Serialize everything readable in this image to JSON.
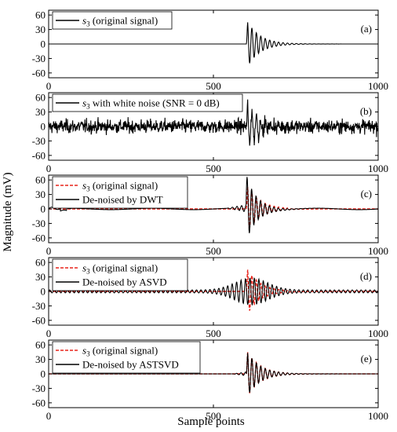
{
  "figure": {
    "ylabel": "Magnitude (mV)",
    "xlabel": "Sample points"
  },
  "colors": {
    "original": "#e8231a",
    "denoised": "#000000",
    "axes": "#000000"
  },
  "chart_data": [
    {
      "panel": "(a)",
      "type": "line",
      "xlim": [
        0,
        1000
      ],
      "ylim": [
        -70,
        70
      ],
      "yticks": [
        60,
        30,
        0,
        -30,
        -60
      ],
      "xticks": [
        0,
        500,
        1000
      ],
      "legend": [
        {
          "name_main": "s",
          "name_sub": "3",
          "name_rest": " (original signal)",
          "style": "solid",
          "color": "#000000"
        }
      ],
      "series": [
        {
          "kind": "s3",
          "description_values": {
            "onset": 600,
            "peak_amplitude": 52,
            "decay_to_zero_by": 750
          },
          "style": "solid",
          "color": "#000000"
        }
      ]
    },
    {
      "panel": "(b)",
      "type": "line",
      "xlim": [
        0,
        1000
      ],
      "ylim": [
        -70,
        70
      ],
      "yticks": [
        60,
        30,
        0,
        -30,
        -60
      ],
      "xticks": [
        0,
        500,
        1000
      ],
      "legend": [
        {
          "name_main": "s",
          "name_sub": "3",
          "name_rest": " with white noise (SNR = 0 dB)",
          "style": "solid",
          "color": "#000000"
        }
      ],
      "series": [
        {
          "kind": "s3_plus_noise",
          "description_values": {
            "onset": 600,
            "peak_amplitude": 55,
            "noise_rms": 11
          },
          "style": "solid",
          "color": "#000000"
        }
      ]
    },
    {
      "panel": "(c)",
      "type": "line",
      "xlim": [
        0,
        1000
      ],
      "ylim": [
        -70,
        70
      ],
      "yticks": [
        60,
        30,
        0,
        -30,
        -60
      ],
      "xticks": [
        0,
        500,
        1000
      ],
      "legend": [
        {
          "name_main": "s",
          "name_sub": "3",
          "name_rest": " (original signal)",
          "style": "dashed",
          "color": "#e8231a"
        },
        {
          "name_main": "De-noised by DWT",
          "name_sub": "",
          "name_rest": "",
          "style": "solid",
          "color": "#000000"
        }
      ],
      "series": [
        {
          "kind": "s3",
          "style": "dashed",
          "color": "#e8231a"
        },
        {
          "kind": "dwt",
          "description_values": {
            "peak_amplitude": 70
          },
          "style": "solid",
          "color": "#000000"
        }
      ]
    },
    {
      "panel": "(d)",
      "type": "line",
      "xlim": [
        0,
        1000
      ],
      "ylim": [
        -70,
        70
      ],
      "yticks": [
        60,
        30,
        0,
        -30,
        -60
      ],
      "xticks": [
        0,
        500,
        1000
      ],
      "legend": [
        {
          "name_main": "s",
          "name_sub": "3",
          "name_rest": " (original signal)",
          "style": "dashed",
          "color": "#e8231a"
        },
        {
          "name_main": "De-noised by ASVD",
          "name_sub": "",
          "name_rest": "",
          "style": "solid",
          "color": "#000000"
        }
      ],
      "series": [
        {
          "kind": "s3",
          "style": "dashed",
          "color": "#e8231a"
        },
        {
          "kind": "asvd",
          "description_values": {
            "peak_amplitude": 28
          },
          "style": "solid",
          "color": "#000000"
        }
      ]
    },
    {
      "panel": "(e)",
      "type": "line",
      "xlim": [
        0,
        1000
      ],
      "ylim": [
        -70,
        70
      ],
      "yticks": [
        60,
        30,
        0,
        -30,
        -60
      ],
      "xticks": [
        0,
        500,
        1000
      ],
      "legend": [
        {
          "name_main": "s",
          "name_sub": "3",
          "name_rest": " (original signal)",
          "style": "dashed",
          "color": "#e8231a"
        },
        {
          "name_main": "De-noised by ASTSVD",
          "name_sub": "",
          "name_rest": "",
          "style": "solid",
          "color": "#000000"
        }
      ],
      "series": [
        {
          "kind": "s3",
          "style": "dashed",
          "color": "#e8231a"
        },
        {
          "kind": "astsvd",
          "description_values": {
            "peak_amplitude": 50
          },
          "style": "solid",
          "color": "#000000"
        }
      ]
    }
  ]
}
